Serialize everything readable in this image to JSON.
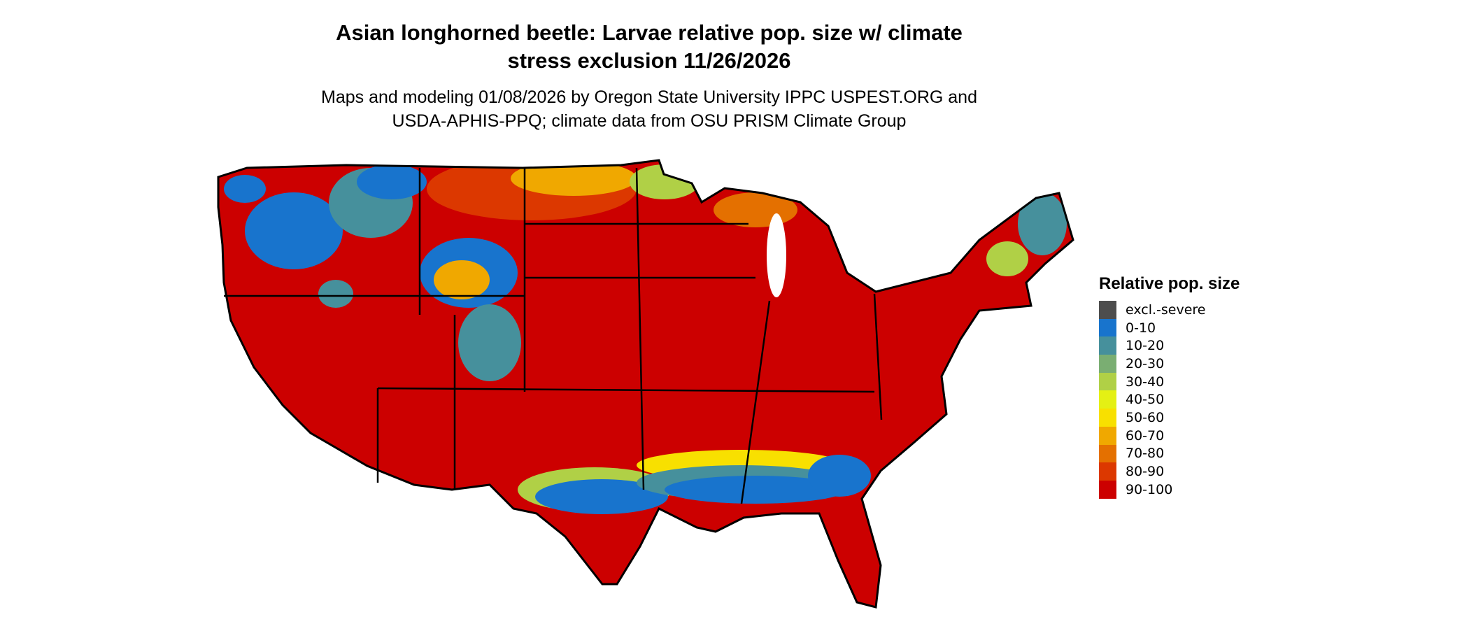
{
  "title_line1": "Asian longhorned beetle: Larvae relative pop. size w/ climate",
  "title_line2": "stress exclusion 11/26/2026",
  "subtitle_line1": "Maps and modeling 01/08/2026 by Oregon State University IPPC USPEST.ORG and",
  "subtitle_line2": "USDA-APHIS-PPQ; climate data from OSU PRISM Climate Group",
  "map": {
    "region": "Contiguous United States",
    "dominant_class": "90-100",
    "border_color": "#000000"
  },
  "legend": {
    "title": "Relative pop. size",
    "items": [
      {
        "label": "excl.-severe",
        "color": "#4d4d4d"
      },
      {
        "label": "0-10",
        "color": "#1874cd"
      },
      {
        "label": "10-20",
        "color": "#46909c"
      },
      {
        "label": "20-30",
        "color": "#7aae72"
      },
      {
        "label": "30-40",
        "color": "#b0d046"
      },
      {
        "label": "40-50",
        "color": "#e4f014"
      },
      {
        "label": "50-60",
        "color": "#f8e000"
      },
      {
        "label": "60-70",
        "color": "#f0a800"
      },
      {
        "label": "70-80",
        "color": "#e47000"
      },
      {
        "label": "80-90",
        "color": "#dc3800"
      },
      {
        "label": "90-100",
        "color": "#cc0000"
      }
    ]
  }
}
